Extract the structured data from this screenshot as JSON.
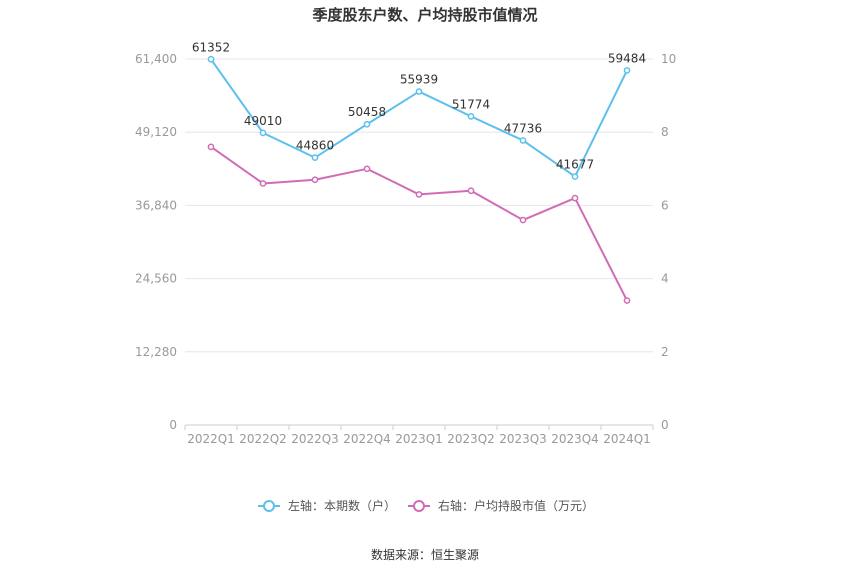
{
  "chart_data": {
    "type": "line",
    "title": "季度股东户数、户均持股市值情况",
    "categories": [
      "2022Q1",
      "2022Q2",
      "2022Q3",
      "2022Q4",
      "2023Q1",
      "2023Q2",
      "2023Q3",
      "2023Q4",
      "2024Q1"
    ],
    "y_left": {
      "ticks": [
        "0",
        "12,280",
        "24,560",
        "36,840",
        "49,120",
        "61,400"
      ],
      "range": [
        0,
        61400
      ]
    },
    "y_right": {
      "ticks": [
        "0",
        "2",
        "4",
        "6",
        "8",
        "10"
      ],
      "range": [
        0,
        10
      ]
    },
    "grid": true,
    "legend_position": "bottom",
    "series": [
      {
        "name": "左轴：本期数（户）",
        "axis": "left",
        "color": "#5bc0eb",
        "values": [
          61352,
          49010,
          44860,
          50458,
          55939,
          51774,
          47736,
          41677,
          59484
        ],
        "labels": [
          "61352",
          "49010",
          "44860",
          "50458",
          "55939",
          "51774",
          "47736",
          "41677",
          "59484"
        ]
      },
      {
        "name": "右轴：户均持股市值（万元）",
        "axis": "right",
        "color": "#d16bb5",
        "values": [
          7.6,
          6.6,
          6.7,
          7.0,
          6.3,
          6.4,
          5.6,
          6.2,
          3.4
        ]
      }
    ]
  },
  "source": "数据来源：恒生聚源",
  "colors": {
    "grid": "#e6e6ef",
    "axis": "#cccccc",
    "tick_text": "#999999",
    "title": "#333333"
  }
}
